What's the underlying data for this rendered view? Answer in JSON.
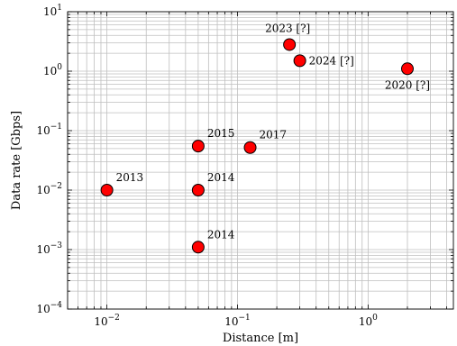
{
  "chart_data": {
    "type": "scatter",
    "xlabel": "Distance [m]",
    "ylabel": "Data rate [Gbps]",
    "xscale": "log",
    "yscale": "log",
    "xlim": [
      0.005,
      4.5
    ],
    "ylim": [
      0.0001,
      10
    ],
    "grid": "both major and minor on x; major and minor on y",
    "x_major_ticks": [
      0.01,
      0.1,
      1
    ],
    "x_tick_labels": [
      {
        "base": "10",
        "exp": "−2"
      },
      {
        "base": "10",
        "exp": "−1"
      },
      {
        "base": "10",
        "exp": "0"
      }
    ],
    "y_major_ticks": [
      0.0001,
      0.001,
      0.01,
      0.1,
      1,
      10
    ],
    "y_tick_labels": [
      {
        "base": "10",
        "exp": "−4"
      },
      {
        "base": "10",
        "exp": "−3"
      },
      {
        "base": "10",
        "exp": "−2"
      },
      {
        "base": "10",
        "exp": "−1"
      },
      {
        "base": "10",
        "exp": "0"
      },
      {
        "base": "10",
        "exp": "1"
      }
    ],
    "marker_color": "#ff0000",
    "points": [
      {
        "x": 0.01,
        "y": 0.01,
        "label": "2013",
        "label_pos": "upper-right"
      },
      {
        "x": 0.05,
        "y": 0.055,
        "label": "2015",
        "label_pos": "upper-right"
      },
      {
        "x": 0.05,
        "y": 0.01,
        "label": "2014",
        "label_pos": "upper-right"
      },
      {
        "x": 0.05,
        "y": 0.0011,
        "label": "2014",
        "label_pos": "upper-right"
      },
      {
        "x": 0.125,
        "y": 0.052,
        "label": "2017",
        "label_pos": "upper-right"
      },
      {
        "x": 0.25,
        "y": 2.8,
        "label": "2023 [?]",
        "label_pos": "upper-left"
      },
      {
        "x": 0.3,
        "y": 1.5,
        "label": "2024 [?]",
        "label_pos": "right"
      },
      {
        "x": 2.0,
        "y": 1.1,
        "label": "2020 [?]",
        "label_pos": "below-left"
      }
    ]
  }
}
